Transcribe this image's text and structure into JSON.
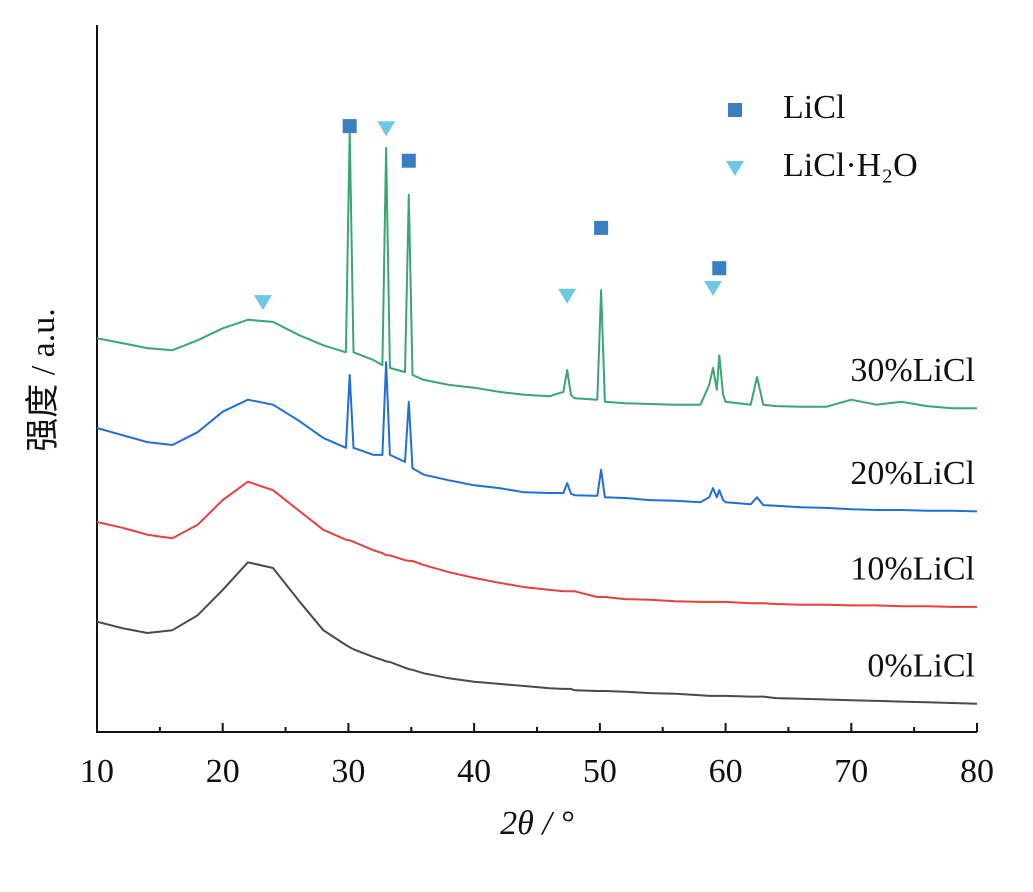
{
  "chart_data": [
    {
      "type": "line",
      "xlabel": "2θ / °",
      "ylabel": "强度 / a.u.",
      "xlim": [
        10,
        80
      ],
      "ylim": [
        0,
        100
      ],
      "xticks": [
        10,
        20,
        30,
        40,
        50,
        60,
        70,
        80
      ],
      "xminorticks": [
        15,
        25,
        35,
        45,
        55,
        65,
        75
      ],
      "x": [
        10,
        12,
        14,
        16,
        18,
        20,
        22,
        24,
        26,
        28,
        29.8,
        30.1,
        30.4,
        32,
        32.7,
        33,
        33.3,
        34.5,
        34.8,
        35.1,
        36,
        38,
        40,
        42,
        44,
        46,
        47.1,
        47.4,
        47.7,
        48,
        49.8,
        50.1,
        50.4,
        52,
        54,
        56,
        58,
        58.7,
        59,
        59.3,
        59.5,
        59.8,
        60,
        62,
        62.5,
        63,
        64,
        66,
        68,
        70,
        72,
        74,
        76,
        78,
        80
      ],
      "series": [
        {
          "name": "0%LiCl",
          "color": "#4a4a4a",
          "values": [
            15.6,
            14.7,
            14.0,
            14.4,
            16.5,
            20.1,
            24.0,
            23.2,
            18.7,
            14.4,
            12.3,
            12.0,
            11.7,
            10.6,
            10.2,
            10.0,
            9.9,
            9.1,
            8.9,
            8.8,
            8.3,
            7.6,
            7.1,
            6.8,
            6.5,
            6.2,
            6.1,
            6.1,
            6.1,
            5.9,
            5.8,
            5.8,
            5.8,
            5.7,
            5.5,
            5.4,
            5.2,
            5.1,
            5.1,
            5.1,
            5.1,
            5.1,
            5.1,
            5.0,
            5.0,
            5.0,
            4.8,
            4.7,
            4.6,
            4.5,
            4.4,
            4.3,
            4.2,
            4.1,
            4.0
          ]
        },
        {
          "name": "10%LiCl",
          "color": "#e8403f",
          "values": [
            29.7,
            28.9,
            27.9,
            27.4,
            29.3,
            32.8,
            35.4,
            34.2,
            31.4,
            28.6,
            27.2,
            27.1,
            26.9,
            25.7,
            25.3,
            25.0,
            25.0,
            24.3,
            24.2,
            24.2,
            23.6,
            22.6,
            21.8,
            21.1,
            20.5,
            20.1,
            19.9,
            19.9,
            19.9,
            19.9,
            19.1,
            19.1,
            19.1,
            18.8,
            18.7,
            18.5,
            18.4,
            18.4,
            18.4,
            18.4,
            18.4,
            18.4,
            18.4,
            18.2,
            18.2,
            18.2,
            18.1,
            18.0,
            18.0,
            17.9,
            17.9,
            17.8,
            17.8,
            17.7,
            17.7
          ]
        },
        {
          "name": "20%LiCl",
          "color": "#1f6fd6",
          "values": [
            43.0,
            42.0,
            41.0,
            40.6,
            42.4,
            45.3,
            47.0,
            46.3,
            44.1,
            41.6,
            40.2,
            50.5,
            40.2,
            39.2,
            39.2,
            52.3,
            39.2,
            38.2,
            46.7,
            37.3,
            36.4,
            35.6,
            34.9,
            34.5,
            33.9,
            33.8,
            33.8,
            35.2,
            33.7,
            33.5,
            33.4,
            37.1,
            33.2,
            33.1,
            32.8,
            32.7,
            32.5,
            33.2,
            34.5,
            33.2,
            34.2,
            32.8,
            32.5,
            32.2,
            33.2,
            32.1,
            32.0,
            31.8,
            31.7,
            31.5,
            31.4,
            31.4,
            31.3,
            31.3,
            31.2
          ]
        },
        {
          "name": "30%LiCl",
          "color": "#3aa673",
          "values": [
            55.7,
            55.0,
            54.3,
            54.0,
            55.4,
            57.1,
            58.3,
            58.0,
            56.2,
            54.7,
            53.7,
            85.1,
            53.7,
            52.6,
            51.9,
            82.6,
            51.5,
            50.9,
            76.0,
            50.5,
            49.8,
            49.1,
            48.7,
            48.1,
            47.7,
            47.5,
            48.1,
            51.2,
            47.7,
            47.2,
            47.0,
            62.5,
            46.7,
            46.5,
            46.4,
            46.3,
            46.3,
            49.1,
            51.5,
            48.4,
            53.3,
            47.7,
            46.7,
            46.3,
            50.2,
            46.3,
            46.1,
            46.0,
            46.0,
            47.0,
            46.3,
            46.7,
            46.1,
            45.8,
            45.8
          ]
        }
      ]
    },
    {
      "type": "scatter",
      "xlim": [
        10,
        80
      ],
      "ylim": [
        0,
        100
      ],
      "series": [
        {
          "name": "LiCl",
          "color": "#3a7fc1",
          "marker": "square",
          "x": [
            30.1,
            34.8,
            50.1,
            59.5
          ],
          "values": [
            85.7,
            80.8,
            71.3,
            65.6
          ]
        },
        {
          "name": "LiCl·H₂O",
          "color": "#6cc8e4",
          "marker": "triangle",
          "x": [
            23.2,
            33.0,
            47.4,
            59.0
          ],
          "values": [
            60.8,
            85.4,
            61.7,
            62.8
          ]
        }
      ]
    }
  ]
}
